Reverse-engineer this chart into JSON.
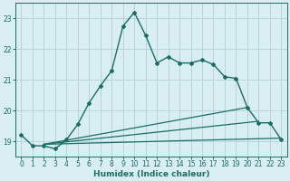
{
  "xlabel": "Humidex (Indice chaleur)",
  "bg_color": "#d8eef3",
  "grid_color": "#b8d4da",
  "line_color": "#1a6e64",
  "xlim": [
    -0.5,
    23.5
  ],
  "ylim": [
    18.5,
    23.5
  ],
  "yticks": [
    19,
    20,
    21,
    22,
    23
  ],
  "xticks": [
    0,
    1,
    2,
    3,
    4,
    5,
    6,
    7,
    8,
    9,
    10,
    11,
    12,
    13,
    14,
    15,
    16,
    17,
    18,
    19,
    20,
    21,
    22,
    23
  ],
  "line1_x": [
    0,
    1,
    2,
    3,
    4,
    5,
    6,
    7,
    8,
    9,
    10,
    11,
    12,
    13,
    14,
    15,
    16,
    17,
    18,
    19,
    20,
    21,
    22,
    23
  ],
  "line1_y": [
    19.2,
    18.85,
    18.85,
    18.75,
    19.05,
    19.55,
    20.25,
    20.8,
    21.3,
    22.75,
    23.2,
    22.45,
    21.55,
    21.75,
    21.55,
    21.55,
    21.65,
    21.5,
    21.1,
    21.05,
    20.1,
    19.6,
    19.6,
    19.05
  ],
  "line2_x": [
    2,
    23
  ],
  "line2_y": [
    18.9,
    19.1
  ],
  "line3_x": [
    2,
    21
  ],
  "line3_y": [
    18.9,
    19.65
  ],
  "line4_x": [
    2,
    20
  ],
  "line4_y": [
    18.9,
    20.1
  ]
}
